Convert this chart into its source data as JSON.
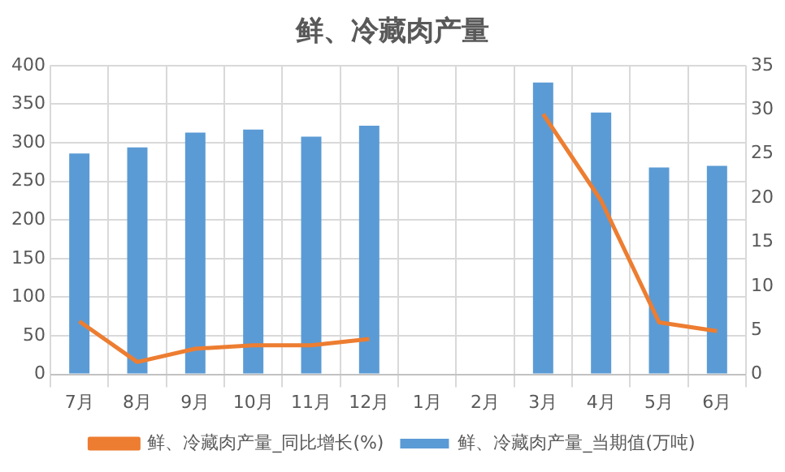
{
  "chart_data": {
    "type": "bar",
    "title": "鲜、冷藏肉产量",
    "categories": [
      "7月",
      "8月",
      "9月",
      "10月",
      "11月",
      "12月",
      "1月",
      "2月",
      "3月",
      "4月",
      "5月",
      "6月"
    ],
    "series": [
      {
        "name": "鲜、冷藏肉产量_当期值(万吨)",
        "color": "#5b9bd5",
        "values": [
          286,
          294,
          313,
          317,
          308,
          322,
          null,
          null,
          378,
          339,
          268,
          270
        ]
      },
      {
        "name": "鲜、冷藏肉产量_同比增长(%)",
        "type": "line",
        "axis": "y2",
        "color": "#ed7d31",
        "values": [
          6.0,
          1.4,
          2.9,
          3.3,
          3.3,
          4.0,
          null,
          null,
          29.5,
          19.7,
          5.9,
          4.9
        ]
      }
    ],
    "ylim": [
      0,
      400
    ],
    "yticks": [
      0,
      50,
      100,
      150,
      200,
      250,
      300,
      350,
      400
    ],
    "y2lim": [
      0,
      35
    ],
    "y2ticks": [
      0,
      5,
      10,
      15,
      20,
      25,
      30,
      35
    ],
    "grid": true,
    "legend": "bottom",
    "marker": "none"
  }
}
